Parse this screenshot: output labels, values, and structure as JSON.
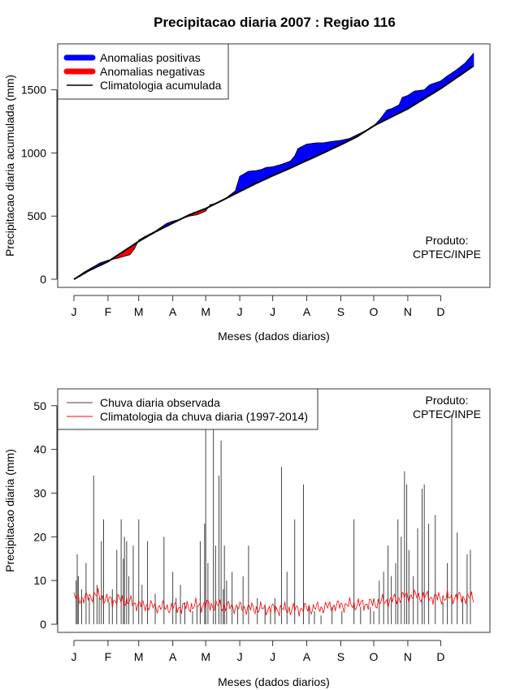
{
  "title": "Precipitacao diaria 2007 : Regiao 116",
  "colors": {
    "positive": "#0000ff",
    "negative": "#ff0000",
    "climatology": "#000000",
    "observed": "#444444",
    "daily_climatology": "#ff0000"
  },
  "chart_data": [
    {
      "type": "area",
      "title": "Precipitacao diaria 2007 : Regiao 116",
      "xlabel": "Meses (dados diarios)",
      "ylabel": "Precipitacao diaria acumulada (mm)",
      "ylim": [
        0,
        1800
      ],
      "yticks": [
        "0",
        "500",
        "1000",
        "1500"
      ],
      "ytick_values": [
        0,
        500,
        1000,
        1500
      ],
      "month_labels": [
        "J",
        "F",
        "M",
        "A",
        "M",
        "J",
        "J",
        "A",
        "S",
        "O",
        "N",
        "D"
      ],
      "month_days": [
        1,
        32,
        60,
        91,
        121,
        152,
        182,
        213,
        244,
        274,
        305,
        335
      ],
      "xlim": [
        1,
        365
      ],
      "legend": {
        "position": "top-left",
        "entries": [
          "Anomalias positivas",
          "Anomalias negativas",
          "Climatologia acumulada"
        ]
      },
      "annotation": [
        "Produto:",
        "CPTEC/INPE"
      ],
      "series": [
        {
          "name": "Climatologia acumulada",
          "days": [
            1,
            15,
            32,
            46,
            60,
            75,
            91,
            106,
            121,
            136,
            152,
            167,
            182,
            198,
            213,
            228,
            244,
            259,
            274,
            290,
            305,
            320,
            335,
            350,
            365
          ],
          "values": [
            0,
            70,
            140,
            220,
            300,
            375,
            445,
            510,
            560,
            625,
            695,
            760,
            820,
            880,
            940,
            1000,
            1065,
            1130,
            1215,
            1285,
            1350,
            1430,
            1510,
            1600,
            1690
          ]
        },
        {
          "name": "Acumulada observada",
          "days": [
            1,
            10,
            17,
            25,
            32,
            40,
            46,
            52,
            56,
            60,
            66,
            75,
            85,
            91,
            98,
            106,
            113,
            121,
            125,
            130,
            138,
            142,
            148,
            152,
            160,
            167,
            172,
            176,
            182,
            190,
            198,
            202,
            205,
            213,
            222,
            228,
            235,
            244,
            252,
            259,
            265,
            274,
            280,
            286,
            290,
            297,
            300,
            305,
            311,
            320,
            325,
            335,
            341,
            348,
            357,
            365
          ],
          "values": [
            0,
            55,
            90,
            130,
            150,
            165,
            180,
            195,
            240,
            310,
            340,
            380,
            440,
            460,
            475,
            500,
            510,
            540,
            590,
            600,
            630,
            660,
            700,
            815,
            855,
            860,
            870,
            885,
            890,
            910,
            935,
            975,
            1035,
            1070,
            1080,
            1080,
            1090,
            1100,
            1115,
            1145,
            1170,
            1215,
            1270,
            1340,
            1350,
            1380,
            1440,
            1455,
            1490,
            1500,
            1540,
            1570,
            1610,
            1650,
            1710,
            1790
          ]
        }
      ]
    },
    {
      "type": "bar",
      "xlabel": "Meses (dados diarios)",
      "ylabel": "Precipitacao diaria (mm)",
      "ylim": [
        0,
        52
      ],
      "yticks": [
        "0",
        "10",
        "20",
        "30",
        "40",
        "50"
      ],
      "ytick_values": [
        0,
        10,
        20,
        30,
        40,
        50
      ],
      "month_labels": [
        "J",
        "F",
        "M",
        "A",
        "M",
        "J",
        "J",
        "A",
        "S",
        "O",
        "N",
        "D"
      ],
      "month_days": [
        1,
        32,
        60,
        91,
        121,
        152,
        182,
        213,
        244,
        274,
        305,
        335
      ],
      "xlim": [
        1,
        365
      ],
      "legend": {
        "position": "top-left",
        "entries": [
          "Chuva diaria observada",
          "Climatologia da chuva diaria (1997-2014)"
        ]
      },
      "annotation": [
        "Produto:",
        "CPTEC/INPE"
      ],
      "series": [
        {
          "name": "Chuva diaria observada",
          "days": [
            3,
            4,
            5,
            8,
            12,
            15,
            19,
            22,
            24,
            26,
            28,
            33,
            36,
            40,
            44,
            46,
            47,
            49,
            51,
            55,
            60,
            63,
            68,
            75,
            83,
            91,
            94,
            98,
            102,
            109,
            113,
            116,
            120,
            121,
            123,
            128,
            130,
            133,
            135,
            137,
            138,
            140,
            145,
            150,
            155,
            160,
            168,
            175,
            180,
            184,
            190,
            195,
            202,
            210,
            215,
            220,
            226,
            236,
            245,
            256,
            262,
            271,
            274,
            279,
            283,
            287,
            290,
            294,
            296,
            299,
            302,
            304,
            306,
            310,
            314,
            318,
            320,
            324,
            330,
            337,
            341,
            345,
            350,
            355,
            359,
            362
          ],
          "values": [
            10,
            16,
            11,
            8,
            14,
            6,
            34,
            9,
            6,
            19,
            24,
            5,
            8,
            17,
            24,
            15,
            20,
            19,
            11,
            18,
            24,
            9,
            19,
            7,
            20,
            12,
            6,
            9,
            5,
            3,
            4,
            19,
            23,
            45,
            14,
            45,
            18,
            34,
            42,
            8,
            18,
            10,
            12,
            4,
            11,
            18,
            6,
            4,
            3,
            6,
            36,
            12,
            24,
            32,
            4,
            3,
            2,
            4,
            3,
            24,
            4,
            4,
            3,
            10,
            12,
            18,
            11,
            14,
            24,
            20,
            35,
            32,
            17,
            11,
            22,
            31,
            32,
            23,
            25,
            5,
            14,
            48,
            21,
            6,
            16,
            17
          ]
        },
        {
          "name": "Climatologia da chuva diaria (1997-2014)",
          "days": [
            1,
            10,
            20,
            32,
            45,
            60,
            75,
            91,
            105,
            121,
            135,
            152,
            166,
            182,
            198,
            213,
            228,
            244,
            259,
            274,
            290,
            305,
            320,
            335,
            350,
            365
          ],
          "values": [
            6.0,
            5.8,
            6.8,
            5.5,
            5.5,
            4.5,
            4.0,
            3.8,
            4.0,
            4.5,
            4.2,
            3.8,
            3.6,
            3.5,
            3.4,
            3.6,
            3.8,
            4.3,
            4.5,
            4.8,
            5.5,
            6.5,
            6.3,
            6.0,
            6.2,
            6.0
          ]
        }
      ]
    }
  ]
}
